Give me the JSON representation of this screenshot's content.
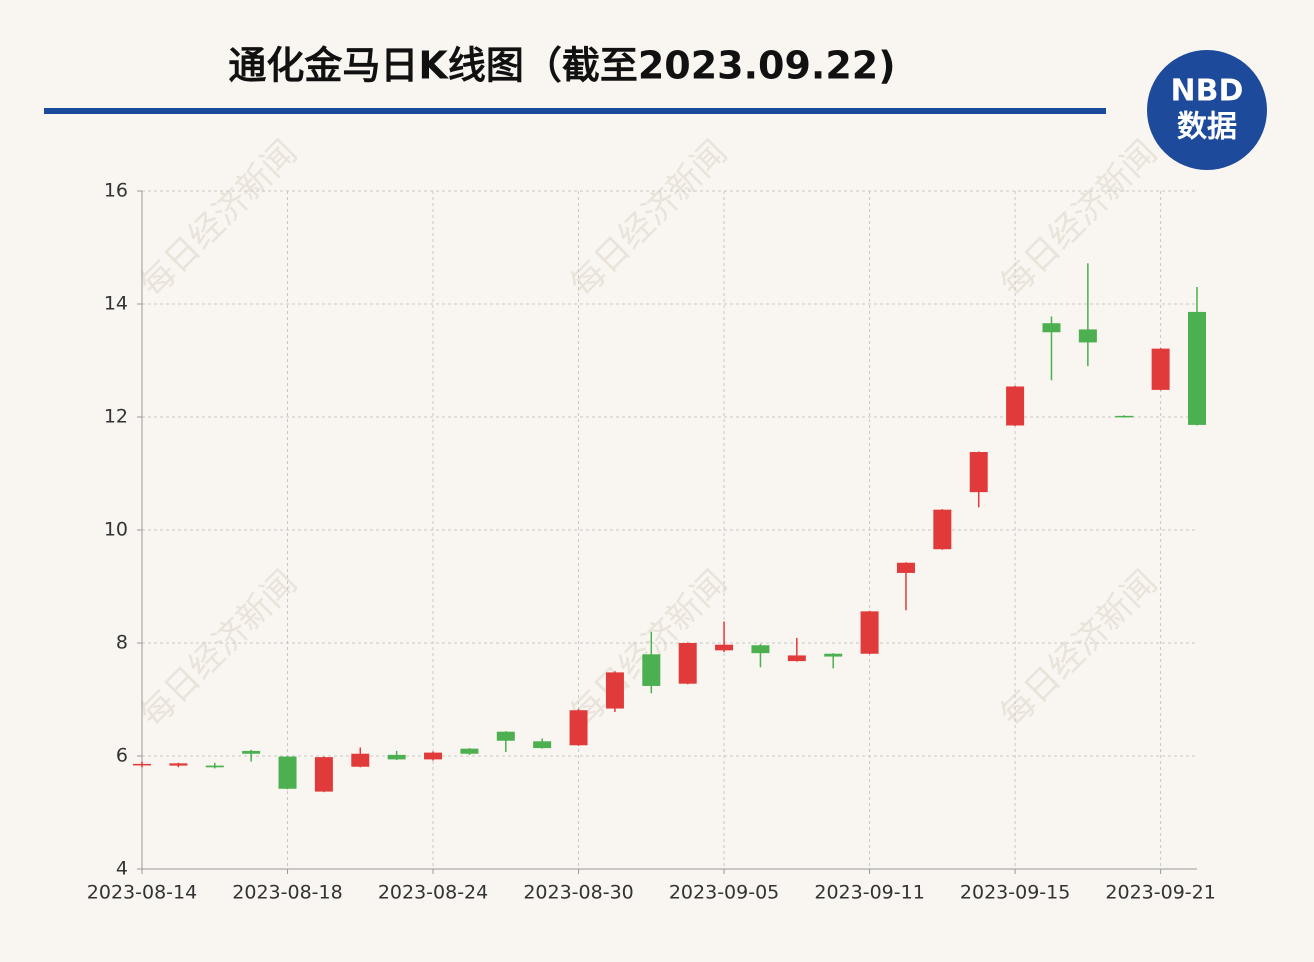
{
  "chart_data": {
    "type": "candlestick",
    "title": "通化金马日K线图（截至2023.09.22)",
    "logo": {
      "top": "NBD",
      "bottom": "数据"
    },
    "watermark": "每日经济新闻",
    "categories": [
      "2023-08-14",
      null,
      null,
      null,
      "2023-08-18",
      null,
      null,
      null,
      "2023-08-24",
      null,
      null,
      null,
      "2023-08-30",
      null,
      null,
      null,
      "2023-09-05",
      null,
      null,
      null,
      "2023-09-11",
      null,
      null,
      null,
      "2023-09-15",
      null,
      null,
      null,
      "2023-09-21",
      null
    ],
    "open": [
      5.84,
      5.83,
      5.83,
      6.09,
      5.99,
      5.37,
      5.81,
      6.02,
      5.94,
      6.13,
      6.43,
      6.26,
      6.19,
      6.84,
      7.8,
      7.28,
      7.87,
      7.96,
      7.68,
      7.81,
      7.81,
      9.24,
      9.66,
      10.67,
      11.85,
      13.66,
      13.55,
      12.02,
      12.48,
      13.86
    ],
    "high": [
      5.9,
      5.88,
      5.88,
      6.11,
      6.0,
      5.99,
      6.15,
      6.09,
      6.08,
      6.14,
      6.44,
      6.31,
      6.83,
      7.5,
      8.2,
      8.01,
      8.38,
      7.98,
      8.09,
      7.82,
      8.57,
      9.43,
      10.37,
      11.39,
      12.55,
      13.78,
      14.72,
      12.03,
      13.22,
      14.3
    ],
    "low": [
      5.8,
      5.8,
      5.78,
      5.9,
      5.41,
      5.36,
      5.8,
      5.93,
      5.92,
      6.02,
      6.07,
      6.13,
      6.18,
      6.78,
      7.11,
      7.27,
      7.84,
      7.57,
      7.67,
      7.55,
      7.8,
      8.58,
      9.65,
      10.4,
      11.84,
      12.65,
      12.9,
      11.99,
      12.47,
      11.85
    ],
    "close": [
      5.86,
      5.87,
      5.8,
      6.04,
      5.42,
      5.98,
      6.04,
      5.94,
      6.06,
      6.04,
      6.27,
      6.14,
      6.81,
      7.48,
      7.24,
      8.0,
      7.97,
      7.82,
      7.78,
      7.76,
      8.56,
      9.42,
      10.36,
      11.38,
      12.54,
      13.5,
      13.32,
      12.0,
      13.21,
      11.86
    ],
    "up_color": "#e03a3a",
    "down_color": "#4caf50",
    "ylim": [
      4,
      16
    ],
    "yticks": [
      4,
      6,
      8,
      10,
      12,
      14,
      16
    ],
    "grid": true
  }
}
